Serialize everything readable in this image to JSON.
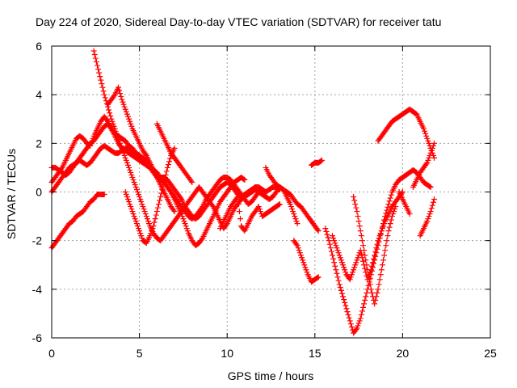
{
  "chart_data": {
    "type": "scatter",
    "title": "Day 224 of 2020, Sidereal Day-to-day VTEC variation (SDTVAR) for receiver tatu",
    "xlabel": "GPS time / hours",
    "ylabel": "SDTVAR / TECUs",
    "xlim": [
      0,
      25
    ],
    "ylim": [
      -6,
      6
    ],
    "xticks": [
      "0",
      "5",
      "10",
      "15",
      "20",
      "25"
    ],
    "yticks": [
      "-6",
      "-4",
      "-2",
      "0",
      "2",
      "4",
      "6"
    ],
    "grid": true,
    "legend": "none",
    "marker": "+",
    "color": "#ff0000",
    "series": [
      {
        "x": [
          0.0,
          0.2,
          0.4,
          0.6,
          0.8,
          1.0,
          1.2,
          1.4,
          1.6,
          1.8,
          2.0,
          2.2,
          2.4,
          2.6,
          2.8,
          3.0,
          3.2,
          3.4,
          3.6,
          3.8,
          4.0,
          4.2,
          4.4,
          4.6,
          4.8,
          5.0,
          5.2,
          5.4,
          5.6,
          5.8,
          6.0,
          6.2,
          6.4,
          6.6,
          6.8,
          7.0,
          7.2,
          7.4,
          7.6,
          7.8,
          8.0,
          8.2,
          8.4,
          8.6,
          8.8,
          9.0,
          9.2,
          9.4,
          9.6,
          9.8,
          10.0,
          10.2,
          10.4,
          10.6,
          10.8,
          11.0
        ],
        "y": [
          0.4,
          0.6,
          0.8,
          1.0,
          1.3,
          1.6,
          1.9,
          2.2,
          2.3,
          2.2,
          2.0,
          1.9,
          2.3,
          2.6,
          2.9,
          3.1,
          2.9,
          2.6,
          2.4,
          2.3,
          2.2,
          2.1,
          1.9,
          1.8,
          1.6,
          1.5,
          1.3,
          1.1,
          1.0,
          0.8,
          0.6,
          0.5,
          0.4,
          0.2,
          0.0,
          -0.3,
          -0.6,
          -0.9,
          -1.3,
          -1.7,
          -2.0,
          -2.2,
          -2.1,
          -1.9,
          -1.6,
          -1.3,
          -1.0,
          -0.7,
          -0.4,
          -0.2,
          0.0,
          0.2,
          0.4,
          0.5,
          0.6,
          0.5
        ]
      },
      {
        "x": [
          0.0,
          0.2,
          0.4,
          0.6,
          0.8,
          1.0,
          1.2,
          1.4,
          1.6,
          1.8,
          2.0,
          2.2,
          2.4,
          2.6,
          2.8,
          3.0,
          3.2,
          3.4,
          3.6,
          3.8,
          4.0,
          4.2,
          4.4,
          4.6,
          4.8,
          5.0,
          5.2,
          5.4,
          5.6,
          5.8,
          6.0,
          6.2,
          6.4,
          6.6,
          6.8,
          7.0,
          7.2,
          7.4,
          7.6,
          7.8,
          8.0,
          8.2,
          8.4,
          8.6,
          8.8,
          9.0,
          9.2,
          9.4,
          9.6,
          9.8,
          10.0,
          10.2,
          10.4,
          10.6,
          10.8,
          11.0,
          11.2,
          11.4,
          11.6,
          11.8,
          12.0
        ],
        "y": [
          1.0,
          1.0,
          0.9,
          0.8,
          0.7,
          0.8,
          1.0,
          1.2,
          1.4,
          1.6,
          1.8,
          2.0,
          2.1,
          2.3,
          2.5,
          2.7,
          2.8,
          2.6,
          2.3,
          2.0,
          1.8,
          1.7,
          1.6,
          1.5,
          1.4,
          1.3,
          1.2,
          1.1,
          1.0,
          0.9,
          0.8,
          0.6,
          0.4,
          0.2,
          0.0,
          -0.2,
          -0.4,
          -0.6,
          -0.8,
          -1.0,
          -1.1,
          -1.0,
          -0.8,
          -0.6,
          -0.3,
          -0.1,
          0.1,
          0.3,
          0.5,
          0.6,
          0.6,
          0.5,
          0.3,
          0.1,
          -0.1,
          -0.3,
          -0.5,
          -0.4,
          -0.2,
          0.0,
          0.1
        ]
      },
      {
        "x": [
          0.0,
          0.2,
          0.4,
          0.6,
          0.8,
          1.0,
          1.2,
          1.4,
          1.6,
          1.8,
          2.0,
          2.2,
          2.4,
          2.6,
          2.8,
          3.0,
          3.2,
          3.4,
          3.6,
          3.8,
          4.0,
          4.2,
          4.4,
          4.6,
          4.8,
          5.0,
          5.2,
          5.4,
          5.6,
          5.8,
          6.0,
          6.2,
          6.4,
          6.6,
          6.8,
          7.0,
          7.2,
          7.4,
          7.6,
          7.8,
          8.0,
          8.2,
          8.4,
          8.6,
          8.8,
          9.0,
          9.2,
          9.4,
          9.6,
          9.8,
          10.0,
          10.2,
          10.4,
          10.6,
          10.8,
          11.0,
          11.2,
          11.4,
          11.6,
          11.8,
          12.0,
          12.2,
          12.4,
          12.6,
          12.8,
          13.0
        ],
        "y": [
          0.0,
          0.2,
          0.4,
          0.6,
          0.8,
          1.0,
          1.1,
          1.2,
          1.3,
          1.2,
          1.1,
          1.2,
          1.4,
          1.6,
          1.8,
          1.9,
          1.8,
          1.7,
          1.6,
          1.6,
          1.7,
          1.8,
          1.8,
          1.7,
          1.6,
          1.5,
          1.4,
          1.3,
          1.1,
          0.9,
          0.7,
          0.6,
          0.6,
          0.5,
          0.3,
          0.1,
          -0.1,
          -0.3,
          -0.6,
          -0.8,
          -1.0,
          -1.1,
          -1.0,
          -0.8,
          -0.6,
          -0.4,
          -0.2,
          0.0,
          0.2,
          0.3,
          0.4,
          0.3,
          0.1,
          -0.1,
          -0.2,
          -0.1,
          0.0,
          0.1,
          0.2,
          0.2,
          0.1,
          0.0,
          0.1,
          0.2,
          0.2,
          0.1
        ]
      },
      {
        "x": [
          0.0,
          0.2,
          0.4,
          0.6,
          0.8,
          1.0,
          1.2,
          1.4,
          1.6,
          1.8,
          2.0,
          2.2,
          2.4,
          2.6,
          2.8,
          3.0
        ],
        "y": [
          -2.3,
          -2.1,
          -1.9,
          -1.7,
          -1.5,
          -1.3,
          -1.2,
          -1.0,
          -0.9,
          -0.8,
          -0.6,
          -0.4,
          -0.3,
          -0.1,
          -0.1,
          -0.1
        ]
      },
      {
        "x": [
          2.4,
          2.6,
          2.8,
          3.0,
          3.2,
          3.4,
          3.6,
          3.8,
          4.0,
          4.2,
          4.4,
          4.6,
          4.8,
          5.0,
          5.2,
          5.4,
          5.6,
          5.8,
          6.0,
          6.2,
          6.4,
          6.6,
          6.8,
          7.0,
          7.2,
          7.4,
          7.6,
          7.8,
          8.0,
          8.2,
          8.4,
          8.6,
          8.8,
          9.0,
          9.2,
          9.4,
          9.6,
          9.8,
          10.0,
          10.2,
          10.4,
          10.6,
          10.8,
          11.0,
          11.2,
          11.4,
          11.6,
          11.8,
          12.0,
          12.2,
          12.4,
          12.6,
          12.8,
          13.0,
          13.2,
          13.4,
          13.6,
          13.8,
          14.0
        ],
        "y": [
          5.8,
          5.2,
          4.6,
          4.0,
          3.5,
          3.0,
          2.6,
          2.2,
          1.8,
          1.4,
          1.0,
          0.6,
          0.2,
          -0.2,
          -0.6,
          -1.0,
          -1.4,
          -1.7,
          -1.9,
          -2.0,
          -1.8,
          -1.6,
          -1.4,
          -1.2,
          -1.0,
          -0.8,
          -0.6,
          -0.4,
          -0.2,
          0.0,
          0.2,
          0.0,
          -0.2,
          -0.4,
          -0.6,
          -0.9,
          -1.2,
          -1.5,
          -1.3,
          -1.0,
          -0.7,
          -0.5,
          -0.3,
          -0.2,
          -0.1,
          0.0,
          0.1,
          0.0,
          -0.1,
          -0.2,
          -0.3,
          -0.2,
          0.0,
          0.2,
          0.1,
          -0.2,
          -0.5,
          -0.9,
          -1.3
        ]
      },
      {
        "x": [
          3.2,
          3.4,
          3.6,
          3.8,
          4.0,
          4.2,
          4.4,
          4.6,
          4.8,
          5.0,
          5.2,
          5.4,
          5.6,
          5.8,
          6.0,
          6.2,
          6.4,
          6.6,
          6.8,
          7.0
        ],
        "y": [
          3.6,
          3.8,
          4.0,
          4.3,
          3.8,
          3.4,
          3.0,
          2.6,
          2.3,
          2.0,
          1.7,
          1.5,
          1.2,
          0.9,
          0.6,
          0.3,
          0.0,
          -0.3,
          -0.6,
          -0.8
        ]
      },
      {
        "x": [
          4.2,
          4.4,
          4.6,
          4.8,
          5.0,
          5.2,
          5.4,
          5.6,
          5.8,
          6.0,
          6.2,
          6.4,
          6.6,
          6.8,
          7.0
        ],
        "y": [
          0.0,
          -0.4,
          -0.8,
          -1.2,
          -1.6,
          -2.0,
          -2.1,
          -1.8,
          -1.4,
          -0.8,
          -0.2,
          0.4,
          1.0,
          1.5,
          1.8
        ]
      },
      {
        "x": [
          6.0,
          6.2,
          6.4,
          6.6,
          6.8,
          7.0,
          7.2,
          7.4,
          7.6,
          7.8,
          8.0
        ],
        "y": [
          2.8,
          2.5,
          2.2,
          1.9,
          1.6,
          1.4,
          1.2,
          1.0,
          0.8,
          0.6,
          0.4
        ]
      },
      {
        "x": [
          9.6,
          9.8,
          10.0,
          10.2,
          10.4,
          10.6,
          10.8,
          11.0,
          11.2,
          11.4,
          11.6,
          11.8,
          12.0,
          12.2,
          12.4,
          12.6,
          12.8,
          13.0
        ],
        "y": [
          -1.5,
          -1.2,
          -0.9,
          -0.6,
          -0.4,
          -0.2,
          -1.4,
          -1.6,
          -1.3,
          -1.0,
          -0.8,
          -0.6,
          -1.0,
          -0.9,
          -0.8,
          -0.7,
          -0.6,
          -0.5
        ]
      },
      {
        "x": [
          12.2,
          12.4,
          12.6,
          12.8,
          13.0,
          13.2,
          13.4,
          13.6,
          13.8,
          14.0,
          14.2,
          14.4,
          14.6,
          14.8,
          15.0,
          15.2
        ],
        "y": [
          1.0,
          0.7,
          0.5,
          0.3,
          0.2,
          0.1,
          0.0,
          -0.1,
          -0.3,
          -0.5,
          -0.6,
          -0.8,
          -1.0,
          -1.2,
          -1.4,
          -1.6
        ]
      },
      {
        "x": [
          13.8,
          14.0,
          14.2,
          14.4,
          14.6,
          14.8,
          15.0,
          15.2
        ],
        "y": [
          -2.0,
          -2.2,
          -2.6,
          -3.0,
          -3.4,
          -3.7,
          -3.6,
          -3.5
        ]
      },
      {
        "x": [
          14.8,
          15.0,
          15.2,
          15.4
        ],
        "y": [
          1.1,
          1.2,
          1.2,
          1.3
        ]
      },
      {
        "x": [
          15.6,
          15.8,
          16.0,
          16.2,
          16.4,
          16.6,
          16.8,
          17.0,
          17.2,
          17.4,
          17.6,
          17.8,
          18.0,
          18.2,
          18.4,
          18.6,
          18.8,
          19.0,
          19.2,
          19.4,
          19.6,
          19.8,
          20.0,
          20.2,
          20.4,
          20.6,
          20.8,
          21.0,
          21.2,
          21.4,
          21.6
        ],
        "y": [
          -1.5,
          -2.0,
          -2.6,
          -3.2,
          -3.8,
          -4.3,
          -4.8,
          -5.3,
          -5.8,
          -5.6,
          -5.2,
          -4.6,
          -4.0,
          -3.4,
          -2.8,
          -2.2,
          -1.6,
          -1.0,
          -0.5,
          0.0,
          0.3,
          0.5,
          0.6,
          0.7,
          0.8,
          0.9,
          0.8,
          0.6,
          0.4,
          0.3,
          0.2
        ]
      },
      {
        "x": [
          16.0,
          16.2,
          16.4,
          16.6,
          16.8,
          17.0,
          17.2,
          17.4,
          17.6,
          17.8,
          18.0,
          18.2,
          18.4,
          18.6,
          18.8,
          19.0,
          19.2,
          19.4,
          19.6,
          19.8,
          20.0
        ],
        "y": [
          -1.8,
          -2.2,
          -2.6,
          -3.0,
          -3.4,
          -3.6,
          -3.2,
          -2.8,
          -2.4,
          -3.0,
          -3.6,
          -3.2,
          -2.6,
          -2.0,
          -1.6,
          -1.2,
          -0.9,
          -0.6,
          -0.4,
          -0.2,
          0.0
        ]
      },
      {
        "x": [
          17.2,
          17.4,
          17.6,
          17.8,
          18.0,
          18.2,
          18.4,
          18.6,
          18.8,
          19.0,
          19.2,
          19.4,
          19.6
        ],
        "y": [
          -0.2,
          -0.8,
          -1.6,
          -2.4,
          -3.2,
          -4.0,
          -4.6,
          -4.0,
          -3.2,
          -2.4,
          -1.6,
          -1.0,
          -0.6
        ]
      },
      {
        "x": [
          18.6,
          18.8,
          19.0,
          19.2,
          19.4,
          19.6,
          19.8,
          20.0,
          20.2,
          20.4,
          20.6,
          20.8,
          21.0,
          21.2,
          21.4,
          21.6,
          21.8
        ],
        "y": [
          2.1,
          2.3,
          2.5,
          2.7,
          2.9,
          3.0,
          3.1,
          3.2,
          3.3,
          3.4,
          3.3,
          3.2,
          2.9,
          2.6,
          2.2,
          1.8,
          1.4
        ]
      },
      {
        "x": [
          20.6,
          20.8,
          21.0,
          21.2,
          21.4,
          21.6,
          21.8
        ],
        "y": [
          0.2,
          0.5,
          0.8,
          1.0,
          1.2,
          1.6,
          2.0
        ]
      },
      {
        "x": [
          21.0,
          21.2,
          21.4,
          21.6,
          21.8
        ],
        "y": [
          -1.8,
          -1.5,
          -1.2,
          -0.8,
          -0.3
        ]
      },
      {
        "x": [
          19.8,
          20.0,
          20.2,
          20.4
        ],
        "y": [
          0.0,
          -0.3,
          -0.6,
          -0.9
        ]
      }
    ]
  }
}
